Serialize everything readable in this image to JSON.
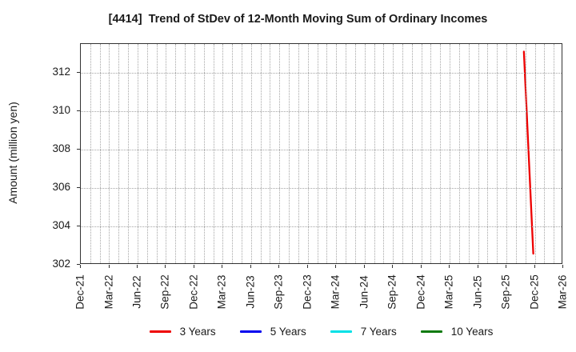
{
  "chart_data": {
    "type": "line",
    "title": "[4414]  Trend of StDev of 12-Month Moving Sum of Ordinary Incomes",
    "ylabel": "Amount (million yen)",
    "xlabel": "",
    "ylim": [
      302,
      313.5
    ],
    "y_ticks": [
      302,
      304,
      306,
      308,
      310,
      312
    ],
    "x_tick_labels": [
      "Dec-21",
      "Mar-22",
      "Jun-22",
      "Sep-22",
      "Dec-22",
      "Mar-23",
      "Jun-23",
      "Sep-23",
      "Dec-23",
      "Mar-24",
      "Jun-24",
      "Sep-24",
      "Dec-24",
      "Mar-25",
      "Jun-25",
      "Sep-25",
      "Dec-25",
      "Mar-26"
    ],
    "x_months_total": 51,
    "months_per_tick": 3,
    "grid": {
      "style": "dotted",
      "vertical": "monthly",
      "horizontal": "at y ticks"
    },
    "legend_position": "bottom",
    "axis_color": "#333333",
    "grid_color": "#a6a6a6",
    "series": [
      {
        "name": "3 Years",
        "color": "#ee0000",
        "points": [
          {
            "month_index": 47,
            "x_label": "Nov-25",
            "value": 313.1
          },
          {
            "month_index": 48,
            "x_label": "Dec-25",
            "value": 302.5
          }
        ]
      },
      {
        "name": "5 Years",
        "color": "#0000ee",
        "points": []
      },
      {
        "name": "7 Years",
        "color": "#00e0e6",
        "points": []
      },
      {
        "name": "10 Years",
        "color": "#0e7a0e",
        "points": []
      }
    ]
  }
}
